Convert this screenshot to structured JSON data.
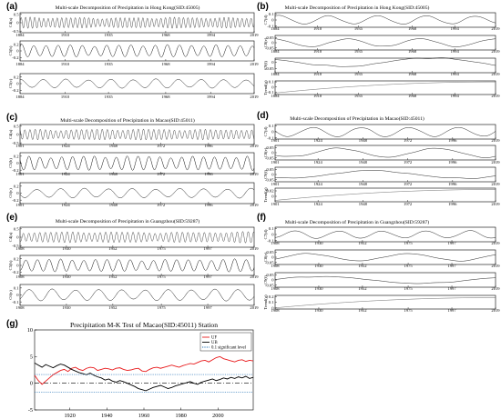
{
  "figure": {
    "panels": [
      {
        "label": "(a)",
        "title": "Multi-scale Decomposition of Precipitation in Hong Kong(SID:45005)"
      },
      {
        "label": "(b)",
        "title": "Multi-scale Decomposition of Precipitation in Hong Kong(SID:45005)"
      },
      {
        "label": "(c)",
        "title": "Multi-scale Decomposition of Precipitation in Macao(SID:45011)"
      },
      {
        "label": "(d)",
        "title": "Multi-scale Decomposition of Precipitation in Macao(SID:45011)"
      },
      {
        "label": "(e)",
        "title": "Multi-scale Decomposition of Precipitation in Guangzhou(SID:59287)"
      },
      {
        "label": "(f)",
        "title": "Multi-scale Decomposition of Precipitation in Guangzhou(SID:59287)"
      },
      {
        "label": "(g)",
        "title": "Precipitation M-K Test of Macao(SID:45011) Station"
      }
    ]
  },
  "chart_data": [
    {
      "type": "line",
      "panel": "(a)",
      "title": "Multi-scale Decomposition of Precipitation in Hong Kong(SID:45005)",
      "xlim": [
        1884,
        2019
      ],
      "xticks": [
        "1884",
        "1910",
        "1935",
        "1968",
        "1994",
        "2019"
      ],
      "subplots": [
        {
          "ylabel": "C4(a)",
          "yticks": [
            "0.5",
            "0",
            "-0.5"
          ],
          "ylim": [
            -0.6,
            0.6
          ],
          "period_years": 2.6,
          "amplitude": 0.35
        },
        {
          "ylabel": "C5(b)",
          "yticks": [
            "0.2",
            "0",
            "-0.2"
          ],
          "ylim": [
            -0.3,
            0.3
          ],
          "period_years": 7.0,
          "amplitude": 0.2
        },
        {
          "ylabel": "C5(c)",
          "yticks": [
            "0.2",
            "0",
            "-0.2"
          ],
          "ylim": [
            -0.3,
            0.3
          ],
          "period_years": 13.0,
          "amplitude": 0.15
        }
      ]
    },
    {
      "type": "line",
      "panel": "(b)",
      "title": "Multi-scale Decomposition of Precipitation in Hong Kong(SID:45005)",
      "xlim": [
        1884,
        2019
      ],
      "xticks": [
        "1884",
        "1910",
        "1935",
        "1968",
        "1994",
        "2019"
      ],
      "subplots": [
        {
          "ylabel": "C7(d)",
          "yticks": [
            "0.1",
            "0",
            "-0.1"
          ],
          "ylim": [
            -0.12,
            0.12
          ],
          "period_years": 30.0,
          "amplitude": 0.08
        },
        {
          "ylabel": "C8(e)",
          "yticks": [
            "0.05",
            "0",
            "-0.05"
          ],
          "ylim": [
            -0.07,
            0.07
          ],
          "period_years": 45.0,
          "amplitude": 0.045
        },
        {
          "ylabel": "C9(f)",
          "yticks": [
            "0",
            "-0.05"
          ],
          "ylim": [
            -0.08,
            0.03
          ],
          "period_years": 110.0,
          "amplitude": 0.04
        },
        {
          "ylabel": "Trend(g)",
          "yticks": [
            "0.1",
            "0",
            "-0.1"
          ],
          "ylim": [
            -0.15,
            0.12
          ],
          "trend": [
            -0.12,
            0.1
          ]
        }
      ]
    },
    {
      "type": "line",
      "panel": "(c)",
      "title": "Multi-scale Decomposition of Precipitation in Macao(SID:45011)",
      "xlim": [
        1901,
        2019
      ],
      "xticks": [
        "1901",
        "1924",
        "1948",
        "1972",
        "1996",
        "2019"
      ],
      "subplots": [
        {
          "ylabel": "C4(a)",
          "yticks": [
            "0.5",
            "0",
            "-0.5"
          ],
          "ylim": [
            -0.6,
            0.6
          ],
          "period_years": 2.6,
          "amplitude": 0.35
        },
        {
          "ylabel": "C5(b)",
          "yticks": [
            "0.2",
            "0",
            "-0.2"
          ],
          "ylim": [
            -0.3,
            0.3
          ],
          "period_years": 5.5,
          "amplitude": 0.22
        },
        {
          "ylabel": "C6(c)",
          "yticks": [
            "0.2",
            "0",
            "-0.2"
          ],
          "ylim": [
            -0.3,
            0.3
          ],
          "period_years": 12.0,
          "amplitude": 0.15
        }
      ]
    },
    {
      "type": "line",
      "panel": "(d)",
      "title": "Multi-scale Decomposition of Precipitation in Macao(SID:45011)",
      "xlim": [
        1901,
        2019
      ],
      "xticks": [
        "1901",
        "1924",
        "1948",
        "1972",
        "1996",
        "2019"
      ],
      "subplots": [
        {
          "ylabel": "C7(d)",
          "yticks": [
            "0.1",
            "0",
            "-0.1"
          ],
          "ylim": [
            -0.12,
            0.12
          ],
          "period_years": 26.0,
          "amplitude": 0.09
        },
        {
          "ylabel": "C8(e)",
          "yticks": [
            "0.05",
            "0",
            "-0.05"
          ],
          "ylim": [
            -0.07,
            0.07
          ],
          "period_years": 52.0,
          "amplitude": 0.05
        },
        {
          "ylabel": "C9(f)",
          "yticks": [
            "0.05",
            "0",
            "-0.05"
          ],
          "ylim": [
            -0.07,
            0.07
          ],
          "period_years": 95.0,
          "amplitude": 0.045
        },
        {
          "ylabel": "Trend(g)",
          "yticks": [
            "0.02",
            "0"
          ],
          "ylim": [
            -0.02,
            0.03
          ],
          "trend": [
            -0.015,
            0.025
          ]
        }
      ]
    },
    {
      "type": "line",
      "panel": "(e)",
      "title": "Multi-scale Decomposition of Precipitation in Guangzhou(SID:59287)",
      "xlim": [
        1908,
        2019
      ],
      "xticks": [
        "1908",
        "1930",
        "1952",
        "1975",
        "1997",
        "2019"
      ],
      "subplots": [
        {
          "ylabel": "C4(a)",
          "yticks": [
            "0.5",
            "0",
            "-0.5"
          ],
          "ylim": [
            -0.6,
            0.6
          ],
          "period_years": 2.6,
          "amplitude": 0.35
        },
        {
          "ylabel": "C5(b)",
          "yticks": [
            "0.2",
            "0",
            "-0.2"
          ],
          "ylim": [
            -0.3,
            0.3
          ],
          "period_years": 5.5,
          "amplitude": 0.2
        },
        {
          "ylabel": "C6(c)",
          "yticks": [
            "0.1",
            "0",
            "-0.1"
          ],
          "ylim": [
            -0.15,
            0.15
          ],
          "period_years": 11.0,
          "amplitude": 0.09
        }
      ]
    },
    {
      "type": "line",
      "panel": "(f)",
      "title": "Multi-scale Decomposition of Precipitation in Guangzhou(SID:59287)",
      "xlim": [
        1908,
        2019
      ],
      "xticks": [
        "1908",
        "1930",
        "1952",
        "1975",
        "1997",
        "2019"
      ],
      "subplots": [
        {
          "ylabel": "C7(d)",
          "yticks": [
            "0.1",
            "0",
            "-0.1"
          ],
          "ylim": [
            -0.12,
            0.12
          ],
          "period_years": 22.0,
          "amplitude": 0.07
        },
        {
          "ylabel": "C8(e)",
          "yticks": [
            "0.05",
            "0",
            "-0.05"
          ],
          "ylim": [
            -0.07,
            0.07
          ],
          "period_years": 50.0,
          "amplitude": 0.04
        },
        {
          "ylabel": "C9(f)",
          "yticks": [
            "0.05",
            "0",
            "-0.05"
          ],
          "ylim": [
            -0.07,
            0.07
          ],
          "period_years": 100.0,
          "amplitude": 0.04
        },
        {
          "ylabel": "Trend(g)",
          "yticks": [
            "0.2",
            "0.1",
            "0"
          ],
          "ylim": [
            -0.02,
            0.22
          ],
          "trend": [
            0.0,
            0.18
          ]
        }
      ]
    },
    {
      "type": "line",
      "panel": "(g)",
      "title": "Precipitation M-K Test of Macao(SID:45011) Station",
      "xlim": [
        1901,
        2019
      ],
      "ylim": [
        -5,
        10
      ],
      "xticks": [
        "1920",
        "1940",
        "1960",
        "1980",
        "2000"
      ],
      "yticks": [
        "10",
        "5",
        "0",
        "-5"
      ],
      "legend": "top-right",
      "series": [
        {
          "name": "UF",
          "color": "#e8191b",
          "x": [
            1901,
            1903,
            1905,
            1907,
            1909,
            1911,
            1913,
            1915,
            1917,
            1919,
            1921,
            1923,
            1925,
            1927,
            1929,
            1931,
            1933,
            1935,
            1937,
            1939,
            1941,
            1943,
            1945,
            1947,
            1949,
            1951,
            1953,
            1955,
            1957,
            1959,
            1961,
            1963,
            1965,
            1967,
            1969,
            1971,
            1973,
            1975,
            1977,
            1979,
            1981,
            1983,
            1985,
            1987,
            1989,
            1991,
            1993,
            1995,
            1997,
            1999,
            2001,
            2003,
            2005,
            2007,
            2009,
            2011,
            2013,
            2015,
            2017,
            2019
          ],
          "values": [
            1.5,
            0.5,
            -0.2,
            0.4,
            1.0,
            1.6,
            2.0,
            2.4,
            2.6,
            2.2,
            2.8,
            3.0,
            2.6,
            2.4,
            2.8,
            3.0,
            2.9,
            2.4,
            2.6,
            2.8,
            2.7,
            2.5,
            2.8,
            2.9,
            2.6,
            2.4,
            2.5,
            2.7,
            2.8,
            2.3,
            2.2,
            2.6,
            2.9,
            3.0,
            2.8,
            3.0,
            3.2,
            3.4,
            3.2,
            3.0,
            3.3,
            3.5,
            3.7,
            3.6,
            3.9,
            4.2,
            4.3,
            4.0,
            4.4,
            4.8,
            5.0,
            4.6,
            4.4,
            4.2,
            4.0,
            4.3,
            4.4,
            4.1,
            4.3,
            4.2
          ]
        },
        {
          "name": "UB",
          "color": "#000000",
          "x": [
            1901,
            1903,
            1905,
            1907,
            1909,
            1911,
            1913,
            1915,
            1917,
            1919,
            1921,
            1923,
            1925,
            1927,
            1929,
            1931,
            1933,
            1935,
            1937,
            1939,
            1941,
            1943,
            1945,
            1947,
            1949,
            1951,
            1953,
            1955,
            1957,
            1959,
            1961,
            1963,
            1965,
            1967,
            1969,
            1971,
            1973,
            1975,
            1977,
            1979,
            1981,
            1983,
            1985,
            1987,
            1989,
            1991,
            1993,
            1995,
            1997,
            1999,
            2001,
            2003,
            2005,
            2007,
            2009,
            2011,
            2013,
            2015,
            2017,
            2019
          ],
          "values": [
            3.8,
            3.4,
            3.0,
            3.5,
            3.2,
            2.9,
            3.3,
            3.6,
            3.4,
            3.0,
            2.6,
            2.3,
            2.0,
            1.8,
            1.6,
            1.9,
            1.5,
            1.2,
            1.0,
            0.6,
            0.8,
            0.4,
            0.2,
            0.5,
            0.3,
            0.0,
            -0.3,
            -0.6,
            -1.0,
            -1.2,
            -1.4,
            -1.1,
            -0.8,
            -0.6,
            -0.4,
            -0.7,
            -1.0,
            -0.8,
            -0.5,
            -0.3,
            -0.1,
            0.1,
            0.3,
            0.0,
            -0.2,
            0.2,
            0.4,
            0.6,
            0.8,
            0.5,
            0.7,
            1.0,
            0.8,
            1.1,
            0.9,
            1.2,
            1.0,
            1.3,
            0.9,
            1.1
          ]
        },
        {
          "name": "0.1 significant level",
          "color": "#1f6fb4",
          "dashed": true,
          "hlines": [
            1.64,
            -1.64
          ]
        }
      ],
      "zero_line": {
        "color": "#000000",
        "dashdot": true,
        "value": 0
      }
    }
  ]
}
